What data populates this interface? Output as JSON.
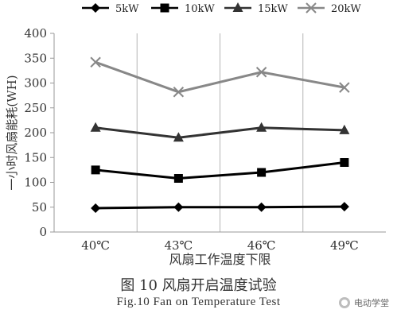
{
  "chart_data": {
    "type": "line",
    "categories": [
      "40℃",
      "43℃",
      "46℃",
      "49℃"
    ],
    "xlabel": "风扇工作温度下限",
    "ylabel": "一小时风扇能耗(WH)",
    "ylim": [
      0,
      400
    ],
    "yticks": [
      0,
      50,
      100,
      150,
      200,
      250,
      300,
      350,
      400
    ],
    "grid": "vertical",
    "legend_position": "top",
    "series": [
      {
        "name": "5kW",
        "marker": "diamond",
        "color": "#000000",
        "values": [
          48,
          50,
          50,
          51
        ]
      },
      {
        "name": "10kW",
        "marker": "square",
        "color": "#000000",
        "values": [
          125,
          108,
          120,
          140
        ]
      },
      {
        "name": "15kW",
        "marker": "triangle",
        "color": "#333333",
        "values": [
          210,
          190,
          210,
          205
        ]
      },
      {
        "name": "20kW",
        "marker": "x",
        "color": "#888888",
        "values": [
          342,
          282,
          322,
          291
        ]
      }
    ]
  },
  "caption_cn": "图 10 风扇开启温度试验",
  "caption_en": "Fig.10 Fan on Temperature Test",
  "watermark": "电动学堂"
}
